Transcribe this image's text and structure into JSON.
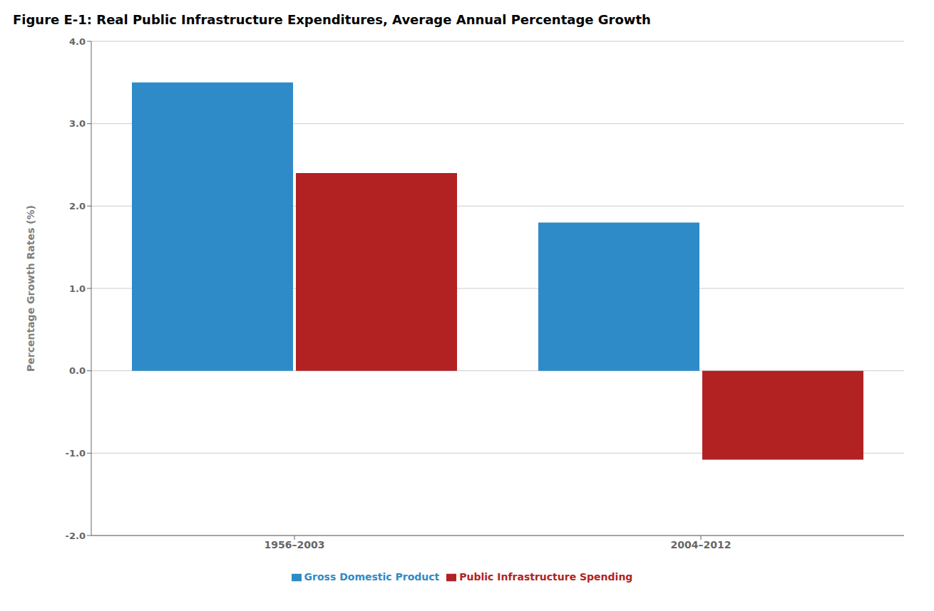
{
  "chart_data": {
    "type": "bar",
    "title": "Figure E-1: Real Public Infrastructure Expenditures, Average Annual Percentage Growth",
    "ylabel": "Percentage Growth Rates (%)",
    "categories": [
      "1956–2003",
      "2004–2012"
    ],
    "series": [
      {
        "name": "Gross Domestic Product",
        "color": "#2e8bc8",
        "values": [
          3.5,
          1.8
        ]
      },
      {
        "name": "Public Infrastructure Spending",
        "color": "#b22222",
        "values": [
          2.4,
          -1.08
        ]
      }
    ],
    "ylim": [
      -2.0,
      4.0
    ],
    "yticks": [
      {
        "value": -2.0,
        "label": "-2.0"
      },
      {
        "value": -1.0,
        "label": "-1.0"
      },
      {
        "value": 0.0,
        "label": "0.0"
      },
      {
        "value": 1.0,
        "label": "1.0"
      },
      {
        "value": 2.0,
        "label": "2.0"
      },
      {
        "value": 3.0,
        "label": "3.0"
      },
      {
        "value": 4.0,
        "label": "4.0"
      }
    ],
    "grid": true,
    "legend": "bottom"
  }
}
